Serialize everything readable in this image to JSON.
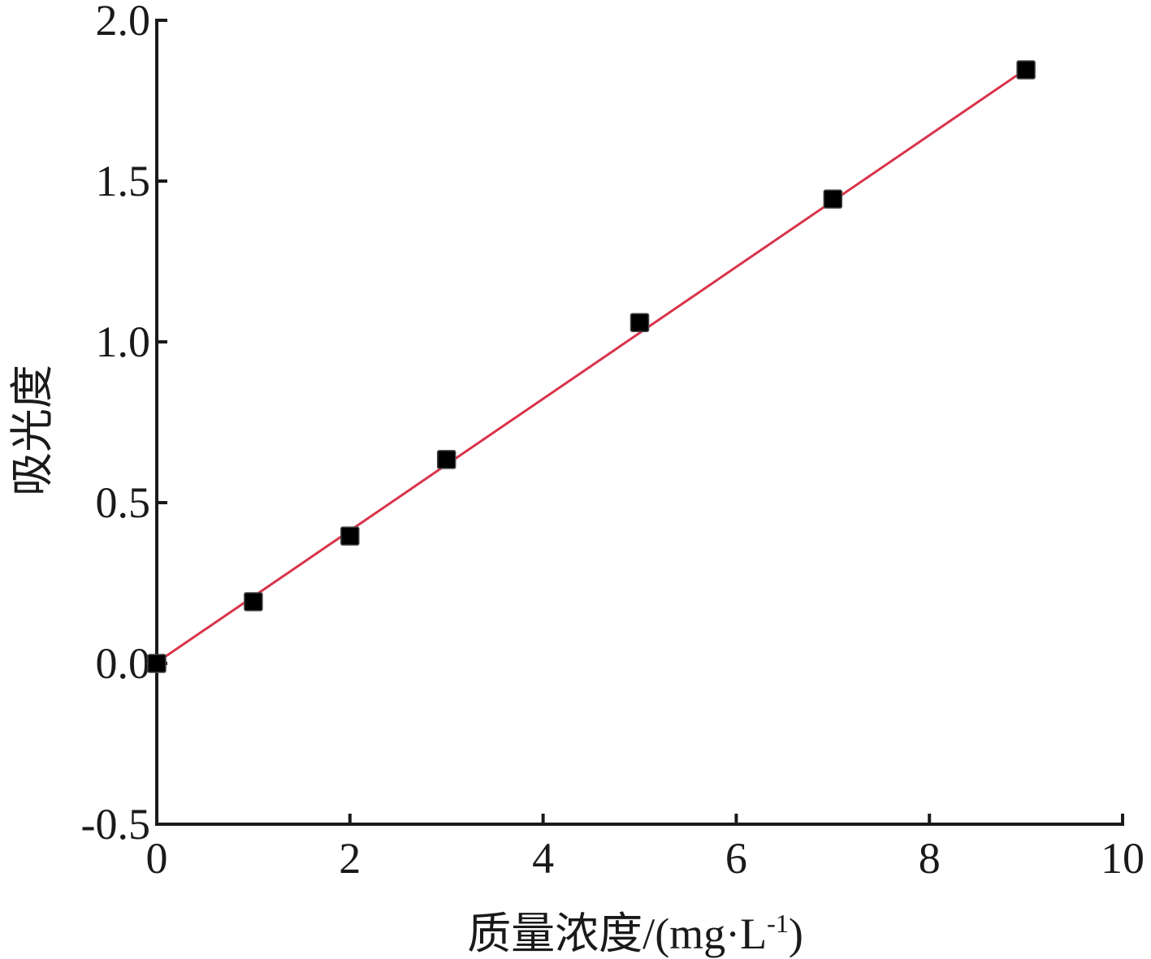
{
  "chart_data": {
    "type": "scatter",
    "x_label": {
      "text": "质量浓度/(mg·L",
      "superscript": "-1",
      "suffix": ")"
    },
    "y_label": "吸光度",
    "series": [
      {
        "type": "scatter",
        "marker": "square",
        "color": "#000000",
        "x": [
          0,
          1,
          2,
          3,
          5,
          7,
          9
        ],
        "values": [
          0.0,
          0.192,
          0.396,
          0.634,
          1.06,
          1.444,
          1.846
        ]
      },
      {
        "type": "line",
        "color": "#d9344a",
        "x": [
          0,
          9
        ],
        "values": [
          0.003,
          1.848
        ]
      }
    ],
    "xlim": [
      0,
      10
    ],
    "xticks": [
      0,
      2,
      4,
      6,
      8,
      10
    ],
    "ylim": [
      -0.5,
      2.0
    ],
    "yticks": [
      {
        "value": -0.5,
        "label": "-0.5"
      },
      {
        "value": 0.0,
        "label": "0.0"
      },
      {
        "value": 0.5,
        "label": "0.5"
      },
      {
        "value": 1.0,
        "label": "1.0"
      },
      {
        "value": 1.5,
        "label": "1.5"
      },
      {
        "value": 2.0,
        "label": "2.0"
      }
    ],
    "grid": false
  }
}
